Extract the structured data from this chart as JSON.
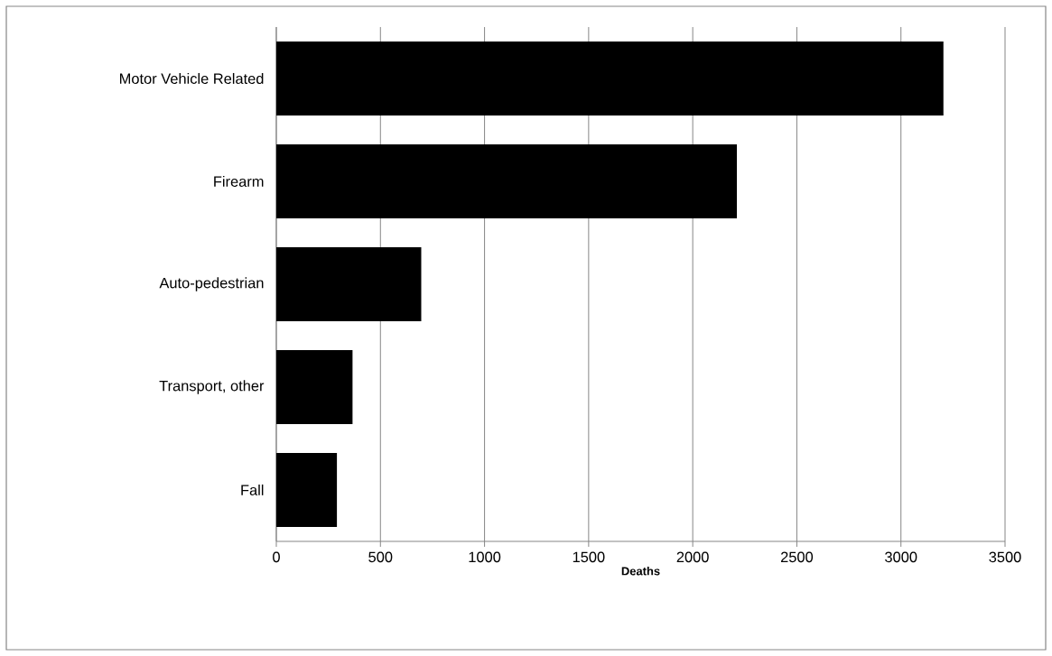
{
  "chart_data": {
    "type": "bar",
    "orientation": "horizontal",
    "categories": [
      "Motor Vehicle Related",
      "Firearm",
      "Auto-pedestrian",
      "Transport, other",
      "Fall"
    ],
    "values": [
      3204,
      2212,
      696,
      366,
      291
    ],
    "color": "#000000",
    "xlabel": "Deaths",
    "xlim": [
      0,
      3500
    ],
    "xticks": [
      0,
      500,
      1000,
      1500,
      2000,
      2500,
      3000,
      3500
    ],
    "grid": "x"
  }
}
